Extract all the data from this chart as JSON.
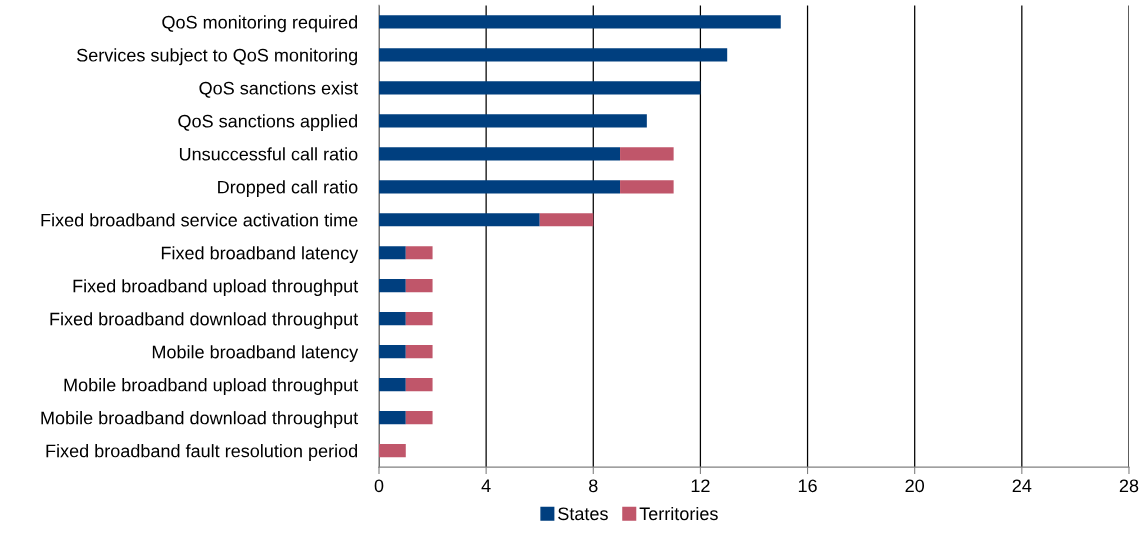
{
  "chart_data": {
    "type": "bar",
    "orientation": "horizontal",
    "stacked": true,
    "categories": [
      "QoS monitoring required",
      "Services subject to QoS monitoring",
      "QoS sanctions exist",
      "QoS sanctions applied",
      "Unsuccessful call ratio",
      "Dropped call ratio",
      "Fixed broadband service activation time",
      "Fixed broadband latency",
      "Fixed broadband upload throughput",
      "Fixed broadband download throughput",
      "Mobile broadband latency",
      "Mobile broadband upload throughput",
      "Mobile broadband download throughput",
      "Fixed broadband fault resolution period"
    ],
    "series": [
      {
        "name": "States",
        "color": "#003f7f",
        "values": [
          15,
          13,
          12,
          10,
          9,
          9,
          6,
          1,
          1,
          1,
          1,
          1,
          1,
          0
        ]
      },
      {
        "name": "Territories",
        "color": "#c0566a",
        "values": [
          0,
          0,
          0,
          0,
          2,
          2,
          2,
          1,
          1,
          1,
          1,
          1,
          1,
          1
        ]
      }
    ],
    "xlim": [
      0,
      28
    ],
    "xticks": [
      0,
      4,
      8,
      12,
      16,
      20,
      24,
      28
    ],
    "grid": "x",
    "legend": "bottom"
  }
}
